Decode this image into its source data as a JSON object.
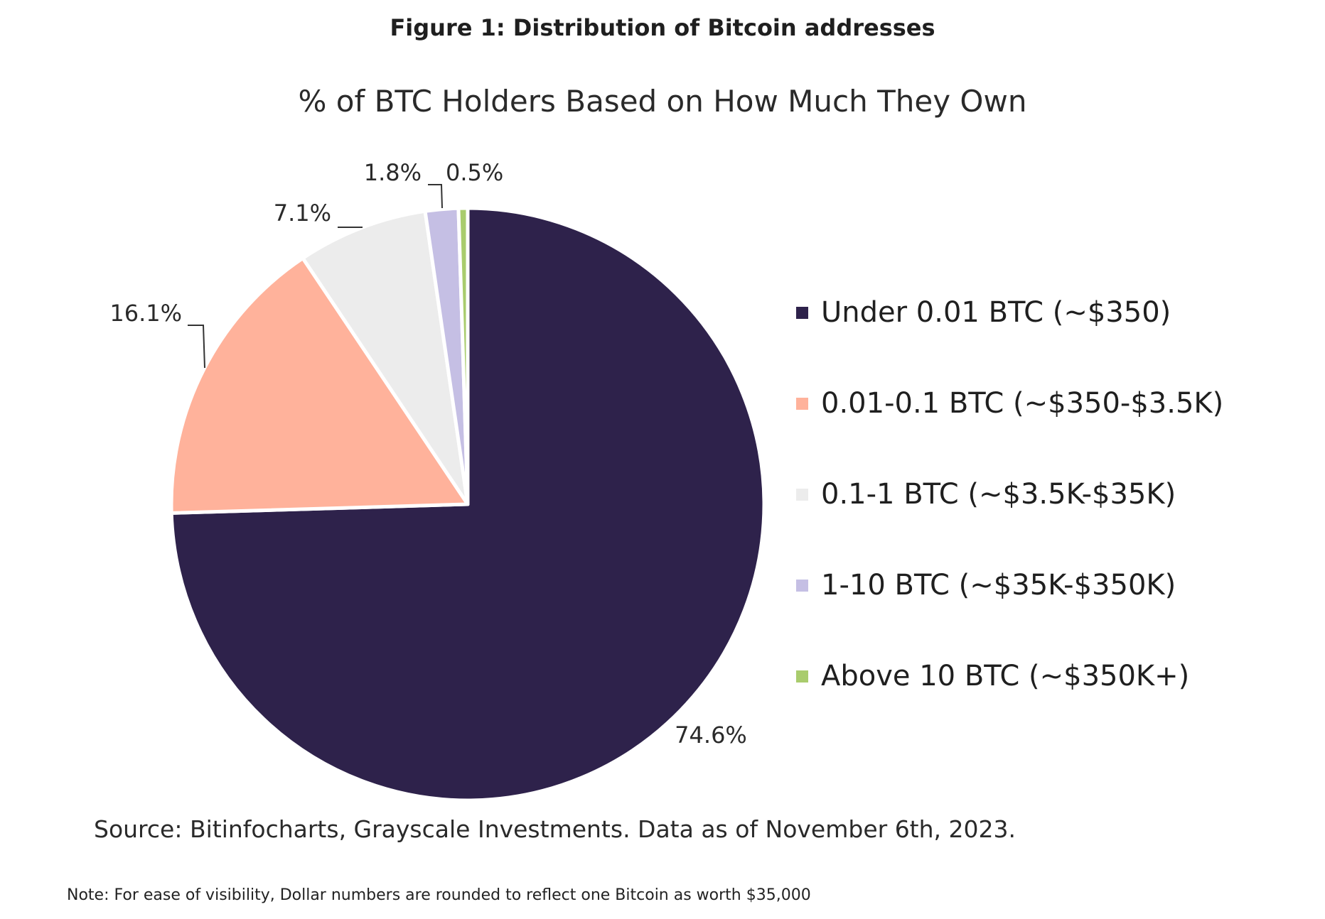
{
  "figure_title": "Figure 1: Distribution of Bitcoin addresses",
  "source": "Source: Bitinfocharts, Grayscale Investments. Data as of November 6th, 2023.",
  "note": "Note: For ease of visibility, Dollar numbers are rounded to reflect one Bitcoin as worth $35,000",
  "chart_data": {
    "type": "pie",
    "title": "% of BTC Holders Based on How Much They Own",
    "legend_position": "right",
    "slices": [
      {
        "label": "Under 0.01 BTC (~$350)",
        "value": 74.6,
        "value_label": "74.6%",
        "color": "#2e224b"
      },
      {
        "label": "0.01-0.1 BTC (~$350-$3.5K)",
        "value": 16.1,
        "value_label": "16.1%",
        "color": "#ffb29b"
      },
      {
        "label": "0.1-1 BTC (~$3.5K-$35K)",
        "value": 7.1,
        "value_label": "7.1%",
        "color": "#ececec"
      },
      {
        "label": "1-10 BTC (~$35K-$350K)",
        "value": 1.8,
        "value_label": "1.8%",
        "color": "#c5bfe4"
      },
      {
        "label": "Above 10 BTC (~$350K+)",
        "value": 0.5,
        "value_label": "0.5%",
        "color": "#a9cc6d"
      }
    ]
  }
}
